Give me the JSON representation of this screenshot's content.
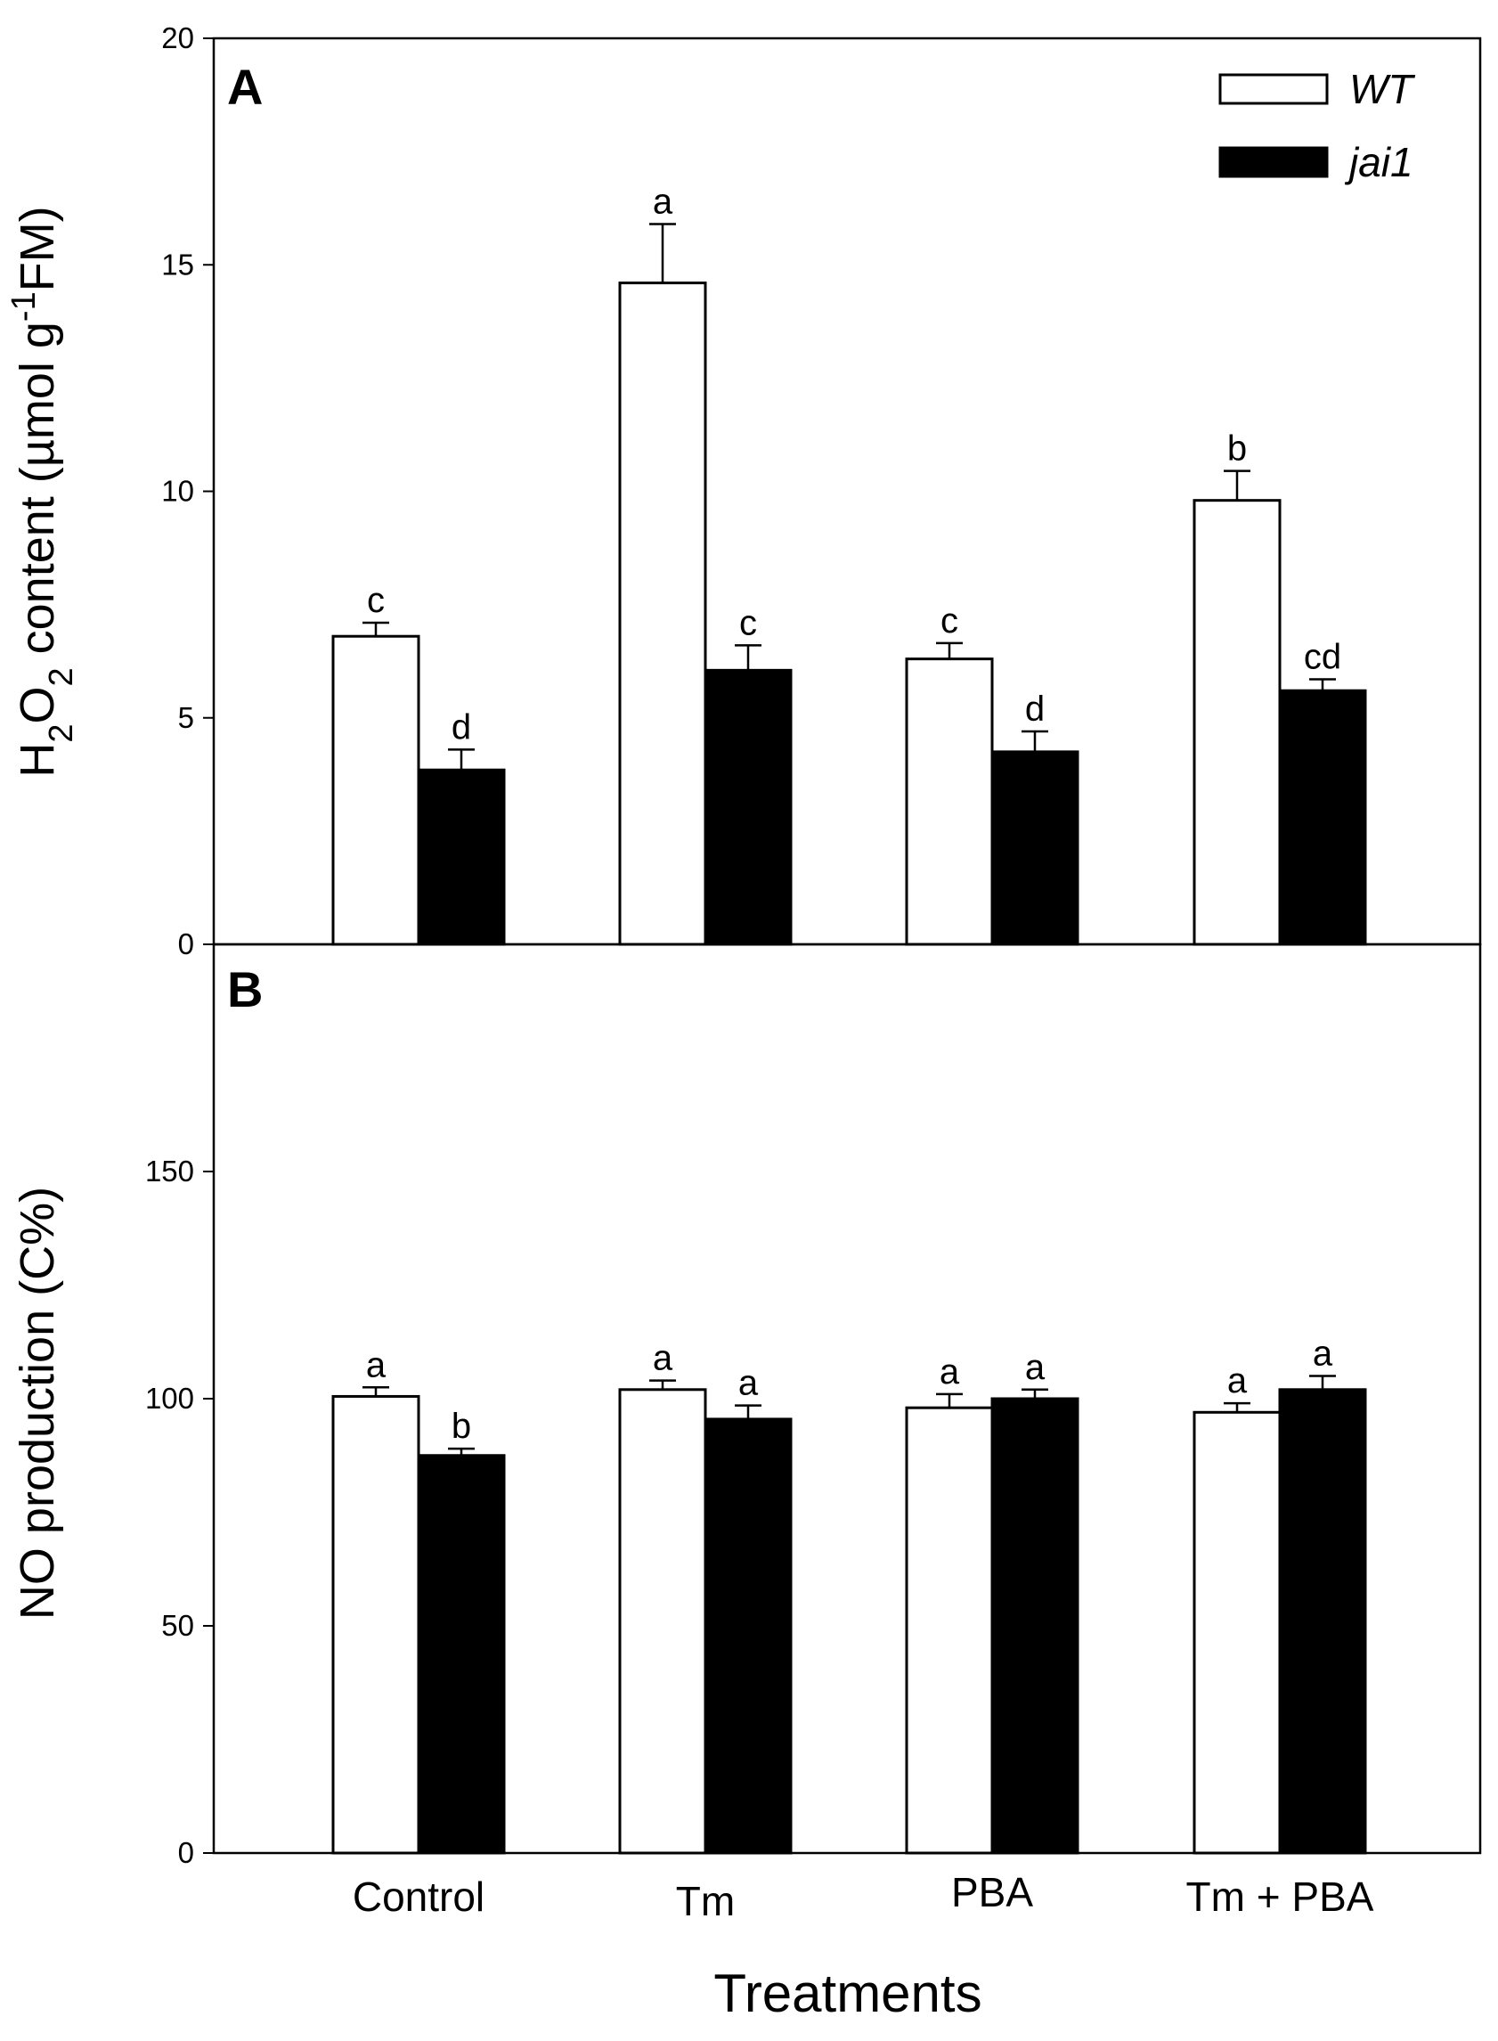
{
  "chart_data": [
    {
      "type": "bar",
      "panel_label": "A",
      "categories": [
        "Control",
        "Tm",
        "PBA",
        "Tm + PBA"
      ],
      "ylabel_parts": [
        "H",
        "2",
        "O",
        "2",
        " content (µmol g",
        "-1",
        "FM)"
      ],
      "ylim": [
        0,
        20
      ],
      "yticks": [
        0,
        5,
        10,
        15,
        20
      ],
      "grid": false,
      "legend_position": "top-right",
      "series": [
        {
          "name": "WT",
          "color": "#ffffff",
          "values": [
            6.8,
            14.6,
            6.3,
            9.8
          ],
          "errors": [
            0.3,
            1.3,
            0.35,
            0.65
          ],
          "letters": [
            "c",
            "a",
            "c",
            "b"
          ]
        },
        {
          "name": "jai1",
          "color": "#000000",
          "values": [
            3.85,
            6.05,
            4.25,
            5.6
          ],
          "errors": [
            0.45,
            0.55,
            0.45,
            0.25
          ],
          "letters": [
            "d",
            "c",
            "d",
            "cd"
          ]
        }
      ]
    },
    {
      "type": "bar",
      "panel_label": "B",
      "categories": [
        "Control",
        "Tm",
        "PBA",
        "Tm + PBA"
      ],
      "ylabel": "NO production (C%)",
      "ylim": [
        0,
        200
      ],
      "yticks": [
        0,
        50,
        100,
        150
      ],
      "grid": false,
      "xlabel": "Treatments",
      "series": [
        {
          "name": "WT",
          "color": "#ffffff",
          "values": [
            100.5,
            102,
            98,
            97
          ],
          "errors": [
            2,
            2,
            3,
            2
          ],
          "letters": [
            "a",
            "a",
            "a",
            "a"
          ]
        },
        {
          "name": "jai1",
          "color": "#000000",
          "values": [
            87.5,
            95.5,
            100,
            102
          ],
          "errors": [
            1.5,
            3,
            2,
            3
          ],
          "letters": [
            "b",
            "a",
            "a",
            "a"
          ]
        }
      ]
    }
  ]
}
